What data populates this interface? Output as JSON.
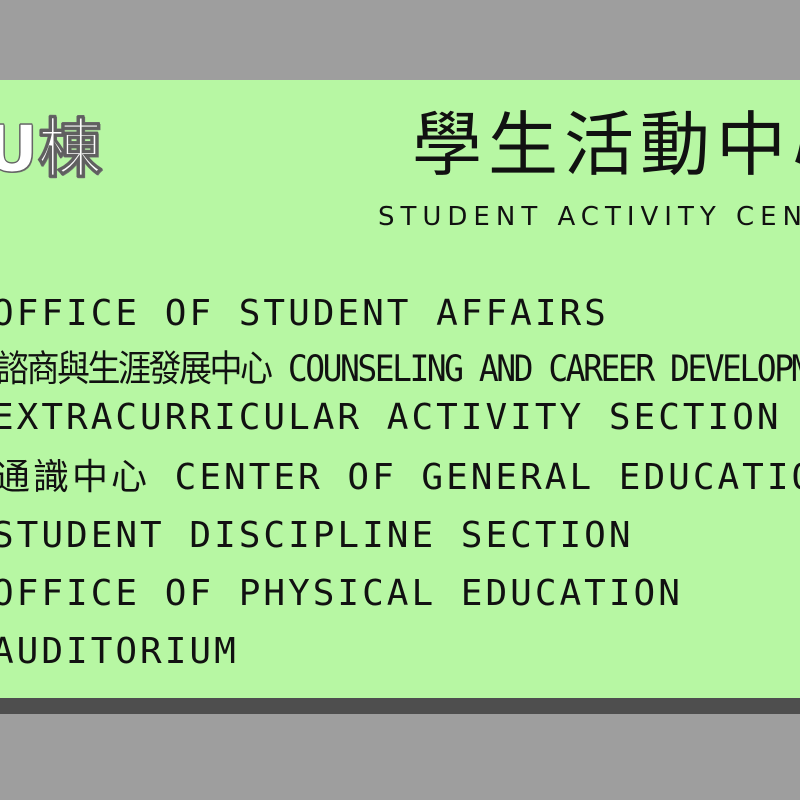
{
  "sign": {
    "building_code": "U棟",
    "title_zh": "學生活動中心",
    "title_en": "STUDENT ACTIVITY CENTER",
    "colors": {
      "sign_background": "#b7f7a3",
      "wall": "#9e9e9e",
      "text": "#111111"
    }
  },
  "offices": [
    "OFFICE OF STUDENT AFFAIRS",
    "諮商與生涯發展中心 COUNSELING AND CAREER DEVELOPMENT CENTER",
    "EXTRACURRICULAR ACTIVITY SECTION",
    "通識中心 CENTER OF GENERAL EDUCATION",
    "STUDENT DISCIPLINE SECTION",
    "OFFICE OF PHYSICAL EDUCATION",
    "AUDITORIUM"
  ]
}
